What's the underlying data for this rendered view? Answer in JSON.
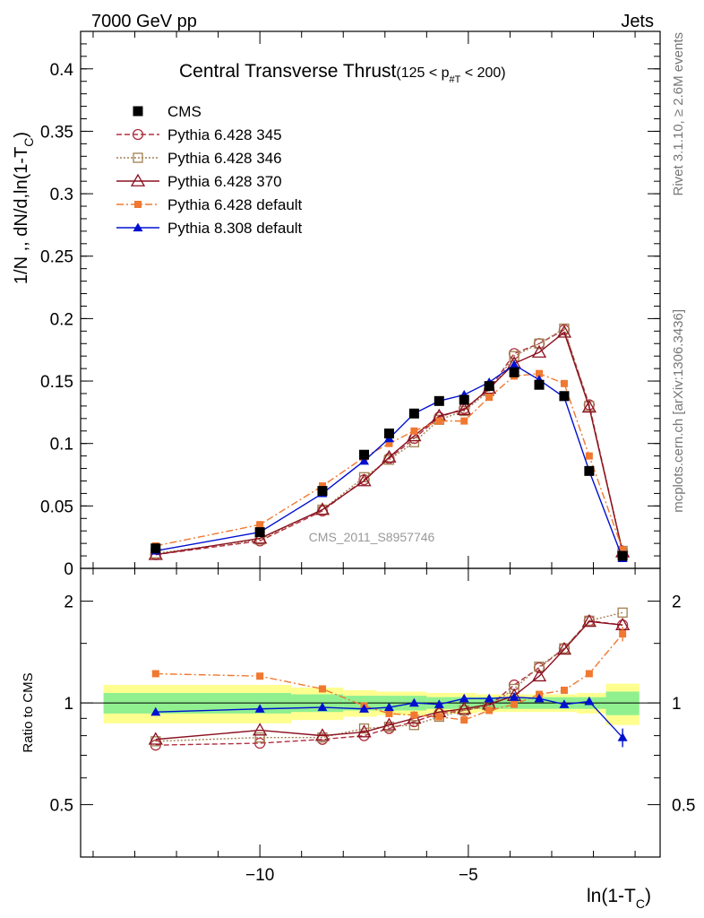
{
  "header": {
    "energy_label": "7000 GeV pp",
    "process_label": "Jets",
    "rivet_label": "Rivet 3.1.10, ≥ 2.6M events",
    "mcplots_label": "mcplots.cern.ch [arXiv:1306.3436]",
    "analysis_label": "CMS_2011_S8957746"
  },
  "chart_data": {
    "type": "line",
    "title": "Central Transverse Thrust",
    "title_cut": "(125 < p",
    "title_cut_sub": "#T",
    "title_cut_end": " < 200)",
    "ylabel": "1/N ,, dN/d,ln(1-T",
    "ylabel_sub": "C",
    "ylabel_end": ")",
    "xlabel": "ln(1-T",
    "xlabel_sub": "C",
    "xlabel_end": ")",
    "ratio_ylabel": "Ratio to CMS",
    "xlim": [
      -14.3,
      -0.4
    ],
    "ylim": [
      0,
      0.43
    ],
    "ratio_ylim": [
      0.35,
      2.5
    ],
    "xticks": [
      -10,
      -5
    ],
    "xtick_labels": [
      "−10",
      "−5"
    ],
    "yticks": [
      0,
      0.05,
      0.1,
      0.15,
      0.2,
      0.25,
      0.3,
      0.35,
      0.4
    ],
    "ytick_labels": [
      "0",
      "0.05",
      "0.1",
      "0.15",
      "0.2",
      "0.25",
      "0.3",
      "0.35",
      "0.4"
    ],
    "ratio_yticks": [
      0.5,
      1,
      2
    ],
    "ratio_ytick_labels": [
      "0.5",
      "1",
      "2"
    ],
    "x": [
      -12.5,
      -10.0,
      -8.5,
      -7.5,
      -6.9,
      -6.3,
      -5.7,
      -5.1,
      -4.5,
      -3.9,
      -3.3,
      -2.7,
      -2.1,
      -1.3
    ],
    "series": [
      {
        "name": "CMS",
        "color": "#000000",
        "marker": "square-filled",
        "values": [
          0.016,
          0.029,
          0.062,
          0.091,
          0.108,
          0.124,
          0.134,
          0.135,
          0.146,
          0.157,
          0.147,
          0.138,
          0.078,
          0.01
        ],
        "ratio": [
          1,
          1,
          1,
          1,
          1,
          1,
          1,
          1,
          1,
          1,
          1,
          1,
          1,
          1
        ]
      },
      {
        "name": "Pythia 6.428 345",
        "color": "#b03040",
        "marker": "circle-open",
        "dash": "6,3",
        "values": [
          0.011,
          0.022,
          0.046,
          0.071,
          0.088,
          0.104,
          0.121,
          0.128,
          0.143,
          0.172,
          0.18,
          0.191,
          0.131,
          0.013
        ],
        "ratio": [
          0.75,
          0.76,
          0.78,
          0.8,
          0.84,
          0.88,
          0.93,
          0.95,
          0.98,
          1.13,
          1.27,
          1.45,
          1.75,
          1.7
        ]
      },
      {
        "name": "Pythia 6.428 346",
        "color": "#a08050",
        "marker": "square-open",
        "dash": "2,2",
        "values": [
          0.012,
          0.023,
          0.047,
          0.073,
          0.087,
          0.101,
          0.119,
          0.126,
          0.142,
          0.17,
          0.18,
          0.192,
          0.13,
          0.014
        ],
        "ratio": [
          0.77,
          0.79,
          0.79,
          0.84,
          0.85,
          0.86,
          0.91,
          0.95,
          0.98,
          1.1,
          1.28,
          1.45,
          1.75,
          1.85
        ]
      },
      {
        "name": "Pythia 6.428 370",
        "color": "#8b1020",
        "marker": "triangle-open",
        "dash": "",
        "values": [
          0.011,
          0.024,
          0.047,
          0.07,
          0.089,
          0.106,
          0.122,
          0.127,
          0.144,
          0.164,
          0.173,
          0.189,
          0.129,
          0.013
        ],
        "ratio": [
          0.78,
          0.83,
          0.8,
          0.82,
          0.86,
          0.9,
          0.94,
          0.96,
          0.99,
          1.05,
          1.2,
          1.44,
          1.74,
          1.7
        ]
      },
      {
        "name": "Pythia 6.428 default",
        "color": "#f07830",
        "marker": "square-filled-small",
        "dash": "8,3,2,3",
        "values": [
          0.018,
          0.035,
          0.066,
          0.089,
          0.1,
          0.11,
          0.118,
          0.118,
          0.137,
          0.154,
          0.156,
          0.148,
          0.09,
          0.015
        ],
        "ratio": [
          1.22,
          1.2,
          1.1,
          0.98,
          0.93,
          0.92,
          0.91,
          0.89,
          0.95,
          0.99,
          1.06,
          1.09,
          1.22,
          1.6
        ]
      },
      {
        "name": "Pythia 8.308 default",
        "color": "#0010d0",
        "marker": "triangle-filled",
        "dash": "",
        "values": [
          0.014,
          0.029,
          0.06,
          0.086,
          0.104,
          0.124,
          0.134,
          0.139,
          0.149,
          0.163,
          0.151,
          0.137,
          0.078,
          0.008
        ],
        "ratio": [
          0.94,
          0.96,
          0.97,
          0.96,
          0.97,
          1.0,
          0.99,
          1.03,
          1.03,
          1.04,
          1.03,
          0.99,
          1.01,
          0.79
        ]
      }
    ]
  }
}
